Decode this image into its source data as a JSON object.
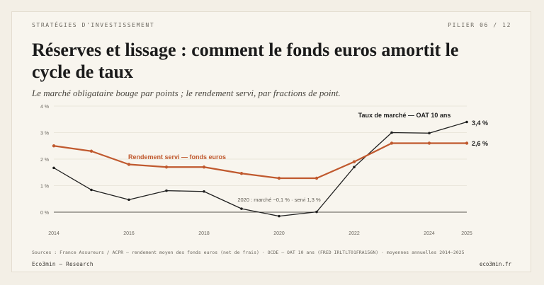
{
  "header": {
    "kicker": "STRATÉGIES D'INVESTISSEMENT",
    "pill": "PILIER 06 / 12",
    "title": "Réserves et lissage : comment le fonds euros amortit le cycle de taux",
    "subtitle": "Le marché obligataire bouge par points ; le rendement servi, par fractions de point."
  },
  "footer": {
    "sources": "Sources : France Assureurs / ACPR — rendement moyen des fonds euros (net de frais) · OCDE — OAT 10 ans (FRED IRLTLT01FRA156N) · moyennes annuelles 2014–2025",
    "brand": "Eco3min — Research",
    "site": "eco3min.fr"
  },
  "chart_data": {
    "type": "line",
    "x": [
      2014,
      2015,
      2016,
      2017,
      2018,
      2019,
      2020,
      2021,
      2022,
      2023,
      2024,
      2025
    ],
    "xticks": [
      "2014",
      "2016",
      "2018",
      "2020",
      "2022",
      "2024",
      "2025"
    ],
    "xtick_values": [
      2014,
      2016,
      2018,
      2020,
      2022,
      2024,
      2025
    ],
    "yticks": [
      "0 %",
      "1 %",
      "2 %",
      "3 %",
      "4 %"
    ],
    "ytick_values": [
      0,
      1,
      2,
      3,
      4
    ],
    "ylim": [
      -0.2,
      4
    ],
    "grid": true,
    "series": [
      {
        "name": "Taux de marché — OAT 10 ans",
        "color": "#1f1f1f",
        "values": [
          1.67,
          0.84,
          0.47,
          0.81,
          0.78,
          0.13,
          -0.15,
          0.01,
          1.7,
          3.0,
          2.98,
          3.4
        ],
        "end_label": "3,4 %"
      },
      {
        "name": "Rendement servi — fonds euros",
        "color": "#c0592e",
        "values": [
          2.5,
          2.3,
          1.8,
          1.7,
          1.7,
          1.46,
          1.28,
          1.28,
          1.9,
          2.6,
          2.6,
          2.6
        ],
        "end_label": "2,6 %"
      }
    ],
    "annotation": "2020 : marché −0,1 % · servi 1,3 %"
  }
}
